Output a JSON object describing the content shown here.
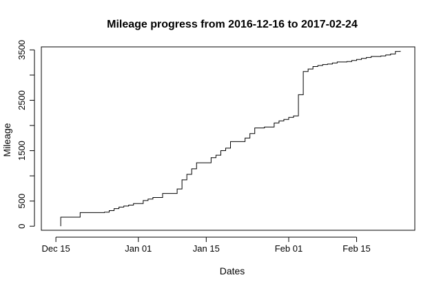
{
  "chart_data": {
    "type": "line",
    "title": "Mileage progress from  2016-12-16  to  2017-02-24",
    "xlabel": "Dates",
    "ylabel": "Mileage",
    "line_style": "step",
    "line_color": "#000000",
    "grid": false,
    "legend": "none",
    "xlim": [
      "2016-12-12",
      "2017-02-27"
    ],
    "ylim": [
      -80,
      3560
    ],
    "x_ticks": [
      {
        "date": "2016-12-15",
        "label": "Dec 15"
      },
      {
        "date": "2017-01-01",
        "label": "Jan 01"
      },
      {
        "date": "2017-01-15",
        "label": "Jan 15"
      },
      {
        "date": "2017-02-01",
        "label": "Feb 01"
      },
      {
        "date": "2017-02-15",
        "label": "Feb 15"
      }
    ],
    "y_ticks": [
      {
        "value": 0,
        "label": "0"
      },
      {
        "value": 500,
        "label": "500"
      },
      {
        "value": 1500,
        "label": "1500"
      },
      {
        "value": 2500,
        "label": "2500"
      },
      {
        "value": 3500,
        "label": "3500"
      }
    ],
    "series": [
      {
        "x": [
          "2016-12-16",
          "2016-12-16",
          "2016-12-20",
          "2016-12-25",
          "2016-12-26",
          "2016-12-27",
          "2016-12-28",
          "2016-12-29",
          "2016-12-30",
          "2016-12-31",
          "2017-01-02",
          "2017-01-03",
          "2017-01-04",
          "2017-01-06",
          "2017-01-09",
          "2017-01-10",
          "2017-01-11",
          "2017-01-12",
          "2017-01-13",
          "2017-01-16",
          "2017-01-17",
          "2017-01-18",
          "2017-01-19",
          "2017-01-20",
          "2017-01-23",
          "2017-01-24",
          "2017-01-25",
          "2017-01-27",
          "2017-01-29",
          "2017-01-30",
          "2017-01-31",
          "2017-02-01",
          "2017-02-02",
          "2017-02-03",
          "2017-02-04",
          "2017-02-05",
          "2017-02-06",
          "2017-02-07",
          "2017-02-08",
          "2017-02-09",
          "2017-02-10",
          "2017-02-11",
          "2017-02-13",
          "2017-02-14",
          "2017-02-15",
          "2017-02-16",
          "2017-02-17",
          "2017-02-18",
          "2017-02-20",
          "2017-02-21",
          "2017-02-22",
          "2017-02-23",
          "2017-02-24"
        ],
        "y": [
          0,
          180,
          270,
          280,
          310,
          350,
          380,
          400,
          420,
          450,
          510,
          540,
          570,
          650,
          740,
          920,
          1030,
          1140,
          1260,
          1360,
          1410,
          1500,
          1550,
          1680,
          1750,
          1840,
          1950,
          1970,
          2050,
          2090,
          2120,
          2160,
          2190,
          2610,
          3070,
          3120,
          3170,
          3190,
          3210,
          3220,
          3240,
          3260,
          3270,
          3290,
          3310,
          3330,
          3350,
          3370,
          3380,
          3400,
          3420,
          3470,
          3480
        ]
      }
    ]
  }
}
